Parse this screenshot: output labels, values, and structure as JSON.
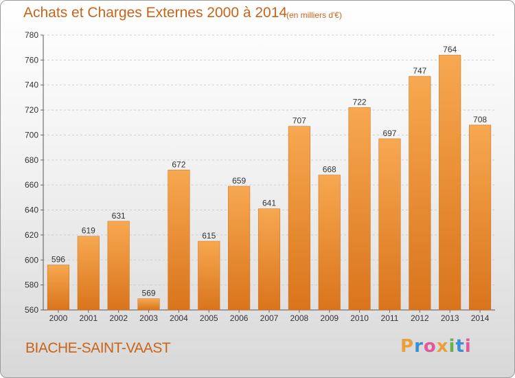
{
  "header": {
    "title": "Achats et Charges Externes 2000 à 2014",
    "subtitle": "(en milliers d'€)"
  },
  "footer": {
    "place": "BIACHE-SAINT-VAAST",
    "logo": [
      "P",
      "r",
      "o",
      "x",
      "i",
      "t",
      "i"
    ],
    "logo_colors": [
      "#e8a13a",
      "#3a8fd0",
      "#e05a9a",
      "#e8a13a",
      "#6ab04c",
      "#3a8fd0",
      "#e05a9a"
    ]
  },
  "chart_data": {
    "type": "bar",
    "title": "Achats et Charges Externes 2000 à 2014",
    "subtitle": "(en milliers d'€)",
    "categories": [
      "2000",
      "2001",
      "2002",
      "2003",
      "2004",
      "2005",
      "2006",
      "2007",
      "2008",
      "2009",
      "2010",
      "2011",
      "2012",
      "2013",
      "2014"
    ],
    "values": [
      596,
      619,
      631,
      569,
      672,
      615,
      659,
      641,
      707,
      668,
      722,
      697,
      747,
      764,
      708
    ],
    "ylim": [
      560,
      780
    ],
    "yticks": [
      560,
      580,
      600,
      620,
      640,
      660,
      680,
      700,
      720,
      740,
      760,
      780
    ],
    "grid": true,
    "bar_color": "#f0902e"
  }
}
